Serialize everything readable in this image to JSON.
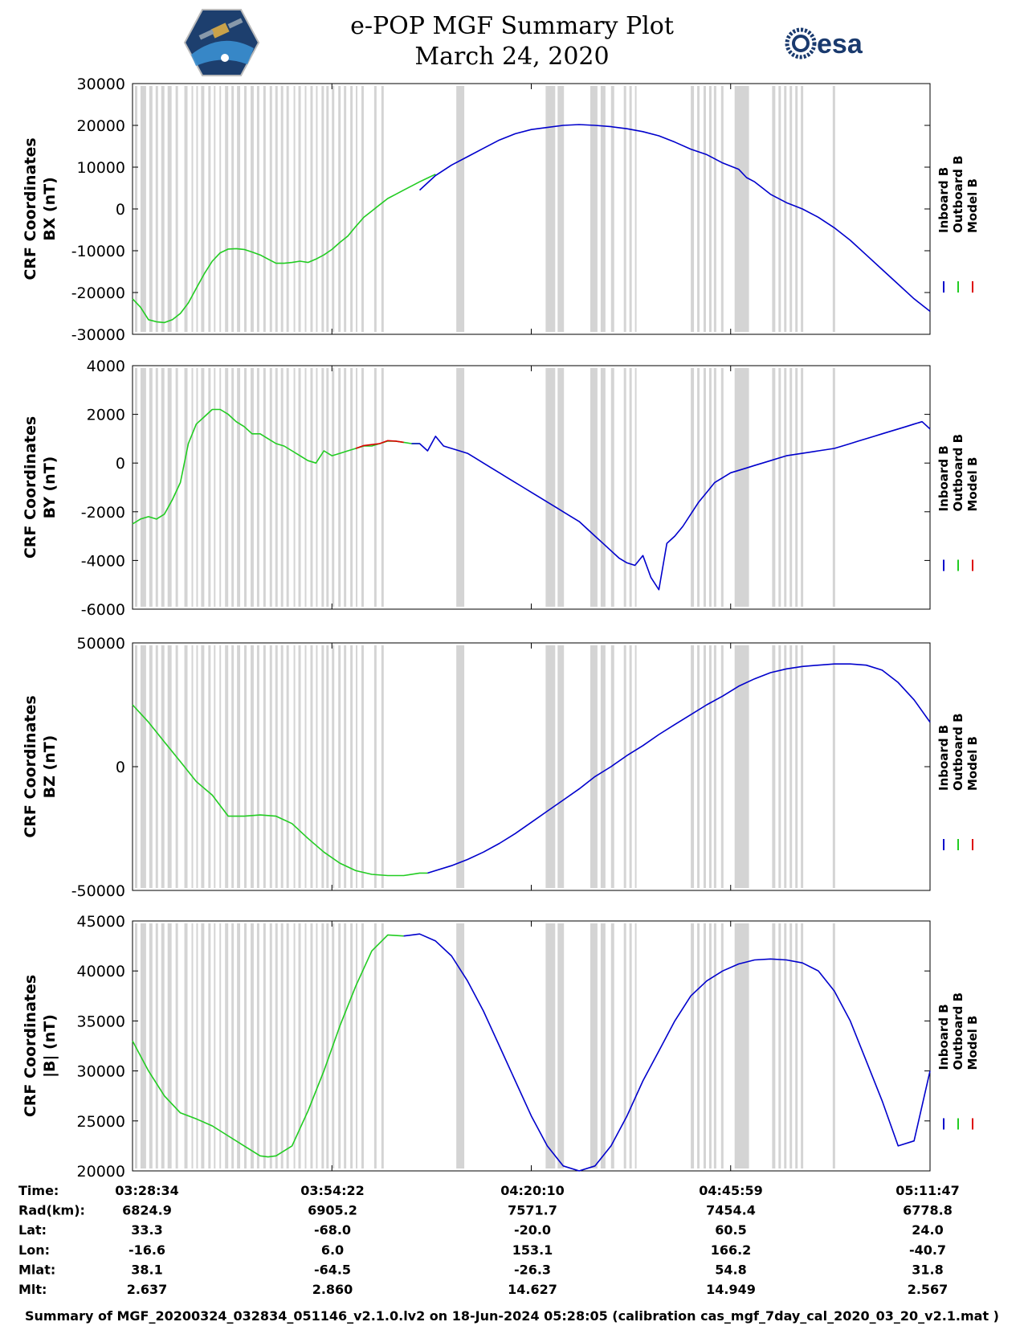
{
  "header": {
    "title": "e-POP MGF Summary Plot",
    "date": "March 24, 2020",
    "left_logo": "cassiope-mission-logo",
    "right_logo": "esa-logo",
    "right_logo_text": "esa"
  },
  "colors": {
    "inboard": "#0000cc",
    "outboard": "#22cc22",
    "model": "#dd0000",
    "gap": "#d4d4d4"
  },
  "legend": [
    "Inboard B",
    "Outboard B",
    "Model B"
  ],
  "chart_data": [
    {
      "type": "line",
      "title": "",
      "ylabel_lines": [
        "CRF Coordinates",
        "BX (nT)"
      ],
      "ylim": [
        -30000,
        30000
      ],
      "yticks": [
        30000,
        20000,
        10000,
        0,
        -10000,
        -20000,
        -30000
      ],
      "ytick_labels": [
        "30000",
        "20000",
        "10000",
        "0",
        "-10000",
        "-20000",
        "-30000"
      ],
      "xlim": [
        0,
        100
      ],
      "series": [
        {
          "name": "Outboard B",
          "x": [
            0,
            1,
            2,
            3,
            4,
            5,
            6,
            7,
            8,
            9,
            10,
            11,
            12,
            13,
            14,
            15,
            16,
            17,
            18,
            19,
            20,
            21,
            22,
            23,
            24,
            25,
            26,
            27,
            28,
            29,
            30,
            31,
            32,
            33,
            34,
            35,
            36,
            37,
            38
          ],
          "y": [
            -21500,
            -23500,
            -26500,
            -27000,
            -27200,
            -26500,
            -25000,
            -22500,
            -19000,
            -15500,
            -12500,
            -10500,
            -9600,
            -9500,
            -9700,
            -10300,
            -11000,
            -12000,
            -13000,
            -13000,
            -12800,
            -12500,
            -12800,
            -12000,
            -11000,
            -9700,
            -8000,
            -6500,
            -4200,
            -2000,
            -500,
            1000,
            2500,
            3500,
            4500,
            5500,
            6500,
            7400,
            8300
          ]
        },
        {
          "name": "Inboard B",
          "x": [
            36,
            38,
            40,
            42,
            44,
            46,
            48,
            50,
            52,
            54,
            56,
            58,
            60,
            62,
            64,
            66,
            68,
            70,
            72,
            74,
            76,
            77,
            78,
            79,
            80,
            82,
            84,
            86,
            88,
            90,
            92,
            94,
            96,
            98,
            100
          ],
          "y": [
            4500,
            8000,
            10500,
            12500,
            14500,
            16500,
            18000,
            19000,
            19500,
            20000,
            20200,
            20000,
            19700,
            19200,
            18500,
            17500,
            16000,
            14300,
            13000,
            11000,
            9500,
            7500,
            6500,
            5000,
            3500,
            1500,
            0,
            -2000,
            -4500,
            -7500,
            -11000,
            -14500,
            -18000,
            -21500,
            -24500
          ]
        }
      ]
    },
    {
      "type": "line",
      "title": "",
      "ylabel_lines": [
        "CRF Coordinates",
        "BY (nT)"
      ],
      "ylim": [
        -6000,
        4000
      ],
      "yticks": [
        4000,
        2000,
        0,
        -2000,
        -4000,
        -6000
      ],
      "ytick_labels": [
        "4000",
        "2000",
        "0",
        "-2000",
        "-4000",
        "-6000"
      ],
      "xlim": [
        0,
        100
      ],
      "series": [
        {
          "name": "Outboard B",
          "x": [
            0,
            1,
            2,
            3,
            4,
            5,
            6,
            7,
            8,
            9,
            10,
            11,
            12,
            13,
            14,
            15,
            16,
            17,
            18,
            19,
            20,
            21,
            22,
            23,
            24,
            25,
            26,
            27,
            28,
            29,
            30,
            31,
            32,
            33,
            34,
            35,
            36
          ],
          "y": [
            -2500,
            -2300,
            -2200,
            -2300,
            -2100,
            -1500,
            -800,
            800,
            1600,
            1900,
            2200,
            2200,
            2000,
            1700,
            1500,
            1200,
            1200,
            1000,
            800,
            700,
            500,
            300,
            100,
            0,
            500,
            300,
            400,
            500,
            600,
            700,
            700,
            800,
            900,
            900,
            850,
            800,
            800
          ]
        },
        {
          "name": "Model B",
          "x": [
            28,
            29,
            30,
            31,
            32,
            33,
            34
          ],
          "y": [
            600,
            720,
            760,
            800,
            920,
            900,
            850
          ]
        },
        {
          "name": "Inboard B",
          "x": [
            35,
            36,
            37,
            38,
            39,
            40,
            41,
            42,
            43,
            44,
            45,
            46,
            47,
            48,
            49,
            50,
            51,
            52,
            53,
            54,
            55,
            56,
            57,
            58,
            59,
            60,
            61,
            62,
            63,
            64,
            65,
            66,
            67,
            68,
            69,
            70,
            71,
            72,
            73,
            74,
            75,
            76,
            77,
            78,
            79,
            80,
            81,
            82,
            83,
            84,
            85,
            86,
            87,
            88,
            89,
            90,
            91,
            92,
            93,
            94,
            95,
            96,
            97,
            98,
            99,
            100
          ],
          "y": [
            800,
            800,
            500,
            1100,
            700,
            600,
            500,
            400,
            200,
            0,
            -200,
            -400,
            -600,
            -800,
            -1000,
            -1200,
            -1400,
            -1600,
            -1800,
            -2000,
            -2200,
            -2400,
            -2700,
            -3000,
            -3300,
            -3600,
            -3900,
            -4100,
            -4200,
            -3800,
            -4700,
            -5200,
            -3300,
            -3000,
            -2600,
            -2100,
            -1600,
            -1200,
            -800,
            -600,
            -400,
            -300,
            -200,
            -100,
            0,
            100,
            200,
            300,
            350,
            400,
            450,
            500,
            550,
            600,
            700,
            800,
            900,
            1000,
            1100,
            1200,
            1300,
            1400,
            1500,
            1600,
            1700,
            1400
          ]
        }
      ]
    },
    {
      "type": "line",
      "title": "",
      "ylabel_lines": [
        "CRF Coordinates",
        "BZ (nT)"
      ],
      "ylim": [
        -50000,
        50000
      ],
      "yticks": [
        50000,
        0,
        -50000
      ],
      "ytick_labels": [
        "50000",
        "0",
        "-50000"
      ],
      "xlim": [
        0,
        100
      ],
      "series": [
        {
          "name": "Outboard B",
          "x": [
            0,
            2,
            4,
            6,
            8,
            10,
            12,
            14,
            16,
            18,
            20,
            22,
            24,
            26,
            28,
            30,
            32,
            34,
            36,
            37
          ],
          "y": [
            25000,
            18000,
            10000,
            2000,
            -6000,
            -11500,
            -20000,
            -20000,
            -19500,
            -20000,
            -23000,
            -29000,
            -34500,
            -39000,
            -42000,
            -43500,
            -44000,
            -44000,
            -43000,
            -43000
          ]
        },
        {
          "name": "Inboard B",
          "x": [
            37,
            40,
            42,
            44,
            46,
            48,
            50,
            52,
            54,
            56,
            58,
            60,
            62,
            64,
            66,
            68,
            70,
            72,
            74,
            76,
            78,
            80,
            82,
            84,
            86,
            88,
            90,
            92,
            94,
            96,
            98,
            100
          ],
          "y": [
            -43000,
            -40000,
            -37500,
            -34500,
            -31000,
            -27000,
            -22500,
            -18000,
            -13500,
            -9000,
            -4000,
            0,
            4500,
            8500,
            13000,
            17000,
            21000,
            25000,
            28500,
            32500,
            35500,
            38000,
            39500,
            40500,
            41000,
            41500,
            41500,
            41000,
            39000,
            34000,
            27000,
            18000
          ]
        }
      ]
    },
    {
      "type": "line",
      "title": "",
      "ylabel_lines": [
        "CRF Coordinates",
        "|B| (nT)"
      ],
      "ylim": [
        20000,
        45000
      ],
      "yticks": [
        45000,
        40000,
        35000,
        30000,
        25000,
        20000
      ],
      "ytick_labels": [
        "45000",
        "40000",
        "35000",
        "30000",
        "25000",
        "20000"
      ],
      "xlim": [
        0,
        100
      ],
      "series": [
        {
          "name": "Outboard B",
          "x": [
            0,
            2,
            4,
            6,
            8,
            10,
            12,
            14,
            16,
            17,
            18,
            20,
            22,
            24,
            26,
            28,
            30,
            32,
            34
          ],
          "y": [
            33000,
            30000,
            27500,
            25800,
            25200,
            24500,
            23500,
            22500,
            21500,
            21400,
            21500,
            22500,
            26000,
            30000,
            34500,
            38500,
            42000,
            43600,
            43500
          ]
        },
        {
          "name": "Inboard B",
          "x": [
            34,
            36,
            38,
            40,
            42,
            44,
            46,
            48,
            50,
            52,
            54,
            56,
            58,
            60,
            62,
            64,
            66,
            68,
            70,
            72,
            74,
            76,
            78,
            80,
            82,
            84,
            86,
            88,
            90,
            92,
            94,
            96,
            98,
            100
          ],
          "y": [
            43500,
            43700,
            43000,
            41500,
            39000,
            36000,
            32500,
            29000,
            25500,
            22500,
            20500,
            20000,
            20500,
            22500,
            25500,
            29000,
            32000,
            35000,
            37500,
            39000,
            40000,
            40700,
            41100,
            41200,
            41100,
            40800,
            40000,
            38000,
            35000,
            31000,
            27000,
            22500,
            23000,
            30000
          ]
        }
      ]
    }
  ],
  "gap_regions": [
    [
      0.3,
      0.6
    ],
    [
      1.0,
      1.7
    ],
    [
      2.1,
      2.5
    ],
    [
      2.9,
      3.2
    ],
    [
      3.6,
      4.0
    ],
    [
      4.4,
      4.9
    ],
    [
      5.4,
      5.7
    ],
    [
      6.5,
      6.9
    ],
    [
      7.4,
      7.6
    ],
    [
      8.0,
      8.2
    ],
    [
      8.6,
      9.0
    ],
    [
      9.5,
      9.8
    ],
    [
      10.2,
      10.4
    ],
    [
      10.9,
      11.1
    ],
    [
      11.6,
      12.0
    ],
    [
      12.4,
      12.7
    ],
    [
      13.1,
      13.5
    ],
    [
      14.0,
      14.3
    ],
    [
      14.8,
      15.2
    ],
    [
      15.6,
      15.9
    ],
    [
      16.4,
      16.7
    ],
    [
      17.2,
      17.5
    ],
    [
      17.9,
      18.2
    ],
    [
      18.6,
      18.9
    ],
    [
      19.3,
      19.6
    ],
    [
      20.2,
      20.4
    ],
    [
      20.8,
      21.1
    ],
    [
      21.6,
      21.8
    ],
    [
      22.3,
      22.6
    ],
    [
      23.0,
      23.2
    ],
    [
      23.7,
      24.0
    ],
    [
      24.3,
      24.6
    ],
    [
      25.0,
      25.3
    ],
    [
      25.8,
      26.1
    ],
    [
      26.5,
      26.8
    ],
    [
      27.3,
      27.6
    ],
    [
      28.0,
      28.2
    ],
    [
      28.7,
      29.0
    ],
    [
      30.3,
      30.6
    ],
    [
      31.2,
      31.5
    ],
    [
      40.6,
      41.6
    ],
    [
      51.8,
      53.0
    ],
    [
      53.3,
      54.1
    ],
    [
      57.4,
      58.3
    ],
    [
      58.7,
      59.3
    ],
    [
      60.0,
      60.4
    ],
    [
      61.6,
      61.9
    ],
    [
      62.3,
      62.6
    ],
    [
      63.0,
      63.2
    ],
    [
      70.0,
      70.4
    ],
    [
      70.8,
      71.1
    ],
    [
      71.6,
      71.9
    ],
    [
      72.3,
      72.6
    ],
    [
      72.9,
      73.2
    ],
    [
      73.8,
      74.1
    ],
    [
      75.5,
      77.3
    ],
    [
      80.2,
      80.6
    ],
    [
      81.0,
      81.3
    ],
    [
      81.7,
      82.0
    ],
    [
      82.4,
      82.7
    ],
    [
      83.1,
      83.4
    ],
    [
      83.8,
      84.1
    ],
    [
      87.8,
      88.1
    ]
  ],
  "xaxis": {
    "tick_positions": [
      0,
      25,
      50,
      75,
      100
    ],
    "rows": [
      {
        "label": "Time:",
        "values": [
          "03:28:34",
          "03:54:22",
          "04:20:10",
          "04:45:59",
          "05:11:47"
        ]
      },
      {
        "label": "Rad(km):",
        "values": [
          "6824.9",
          "6905.2",
          "7571.7",
          "7454.4",
          "6778.8"
        ]
      },
      {
        "label": "Lat:",
        "values": [
          "33.3",
          "-68.0",
          "-20.0",
          "60.5",
          "24.0"
        ]
      },
      {
        "label": "Lon:",
        "values": [
          "-16.6",
          "6.0",
          "153.1",
          "166.2",
          "-40.7"
        ]
      },
      {
        "label": "Mlat:",
        "values": [
          "38.1",
          "-64.5",
          "-26.3",
          "54.8",
          "31.8"
        ]
      },
      {
        "label": "Mlt:",
        "values": [
          "2.637",
          "2.860",
          "14.627",
          "14.949",
          "2.567"
        ]
      }
    ]
  },
  "footer": "Summary of MGF_20200324_032834_051146_v2.1.0.lv2 on 18-Jun-2024 05:28:05 (calibration cas_mgf_7day_cal_2020_03_20_v2.1.mat )"
}
